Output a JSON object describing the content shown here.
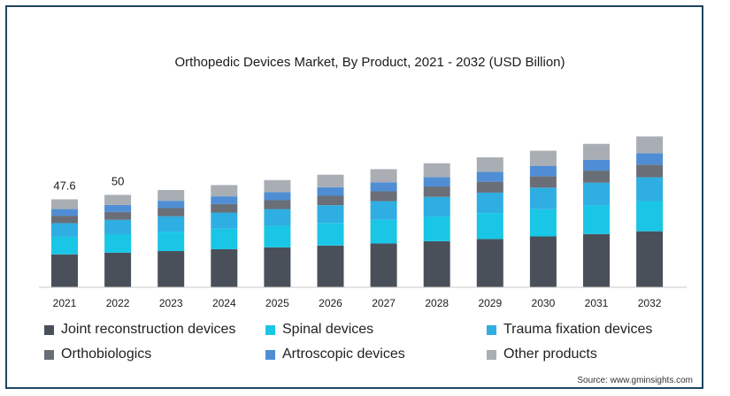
{
  "chart_data": {
    "type": "bar",
    "stacked": true,
    "title": "Orthopedic Devices Market, By Product, 2021 - 2032 (USD Billion)",
    "xlabel": "",
    "ylabel": "",
    "categories": [
      "2021",
      "2022",
      "2023",
      "2024",
      "2025",
      "2026",
      "2027",
      "2028",
      "2029",
      "2030",
      "2031",
      "2032"
    ],
    "ylim": [
      0,
      110
    ],
    "series": [
      {
        "name": "Joint reconstruction devices",
        "color": "#4a5059",
        "values": [
          17.8,
          18.7,
          19.6,
          20.6,
          21.6,
          22.6,
          23.7,
          24.9,
          26.1,
          27.5,
          28.8,
          30.3
        ]
      },
      {
        "name": "Spinal devices",
        "color": "#19c6e6",
        "values": [
          9.5,
          10.0,
          10.5,
          11.1,
          11.6,
          12.2,
          12.8,
          13.4,
          14.0,
          14.7,
          15.5,
          16.3
        ]
      },
      {
        "name": "Trauma fixation devices",
        "color": "#2eaee2",
        "values": [
          7.4,
          7.8,
          8.3,
          8.7,
          9.1,
          9.6,
          10.1,
          10.6,
          11.1,
          11.7,
          12.3,
          12.9
        ]
      },
      {
        "name": "Orthobiologics",
        "color": "#6a6e77",
        "values": [
          4.0,
          4.2,
          4.4,
          4.6,
          4.8,
          5.1,
          5.3,
          5.6,
          5.9,
          6.2,
          6.5,
          6.8
        ]
      },
      {
        "name": "Artroscopic devices",
        "color": "#4f8ed4",
        "values": [
          3.6,
          3.8,
          4.0,
          4.2,
          4.4,
          4.6,
          4.9,
          5.1,
          5.4,
          5.6,
          5.9,
          6.2
        ]
      },
      {
        "name": "Other products",
        "color": "#a9aeb4",
        "values": [
          5.3,
          5.5,
          5.8,
          6.1,
          6.5,
          6.8,
          7.1,
          7.5,
          7.8,
          8.2,
          8.6,
          9.1
        ]
      }
    ],
    "data_labels": [
      {
        "category": "2021",
        "text": "47.6"
      },
      {
        "category": "2022",
        "text": "50"
      }
    ],
    "legend_position": "bottom",
    "grid": false,
    "source": "Source: www.gminsights.com"
  }
}
